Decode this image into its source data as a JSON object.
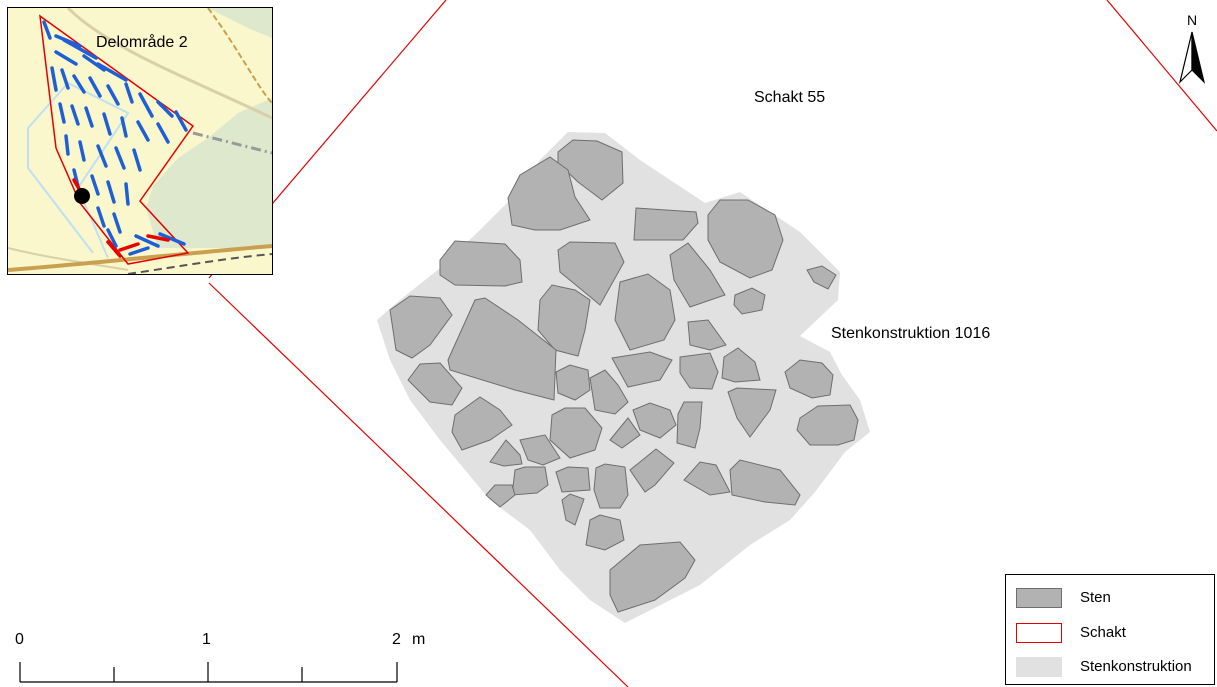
{
  "map": {
    "north_label": "N",
    "labels": {
      "trench": "Schakt 55",
      "construction": "Stenkonstruktion 1016"
    },
    "colors": {
      "stone_fill": "#b2b2b2",
      "stone_outline": "#6e6e6e",
      "construction_fill": "#e1e1e1",
      "trench_line": "#e60000"
    }
  },
  "inset": {
    "title": "Delområde 2",
    "colors": {
      "background": "#faf7cc",
      "green": "#dde8cc",
      "trench_blue": "#1f5fd6",
      "boundary_red": "#e60000",
      "road": "#c8a050"
    }
  },
  "legend": {
    "items": [
      {
        "label": "Sten",
        "kind": "stone"
      },
      {
        "label": "Schakt",
        "kind": "trench"
      },
      {
        "label": "Stenkonstruktion",
        "kind": "construction"
      }
    ]
  },
  "scalebar": {
    "ticks": [
      "0",
      "1",
      "2"
    ],
    "unit": "m"
  }
}
